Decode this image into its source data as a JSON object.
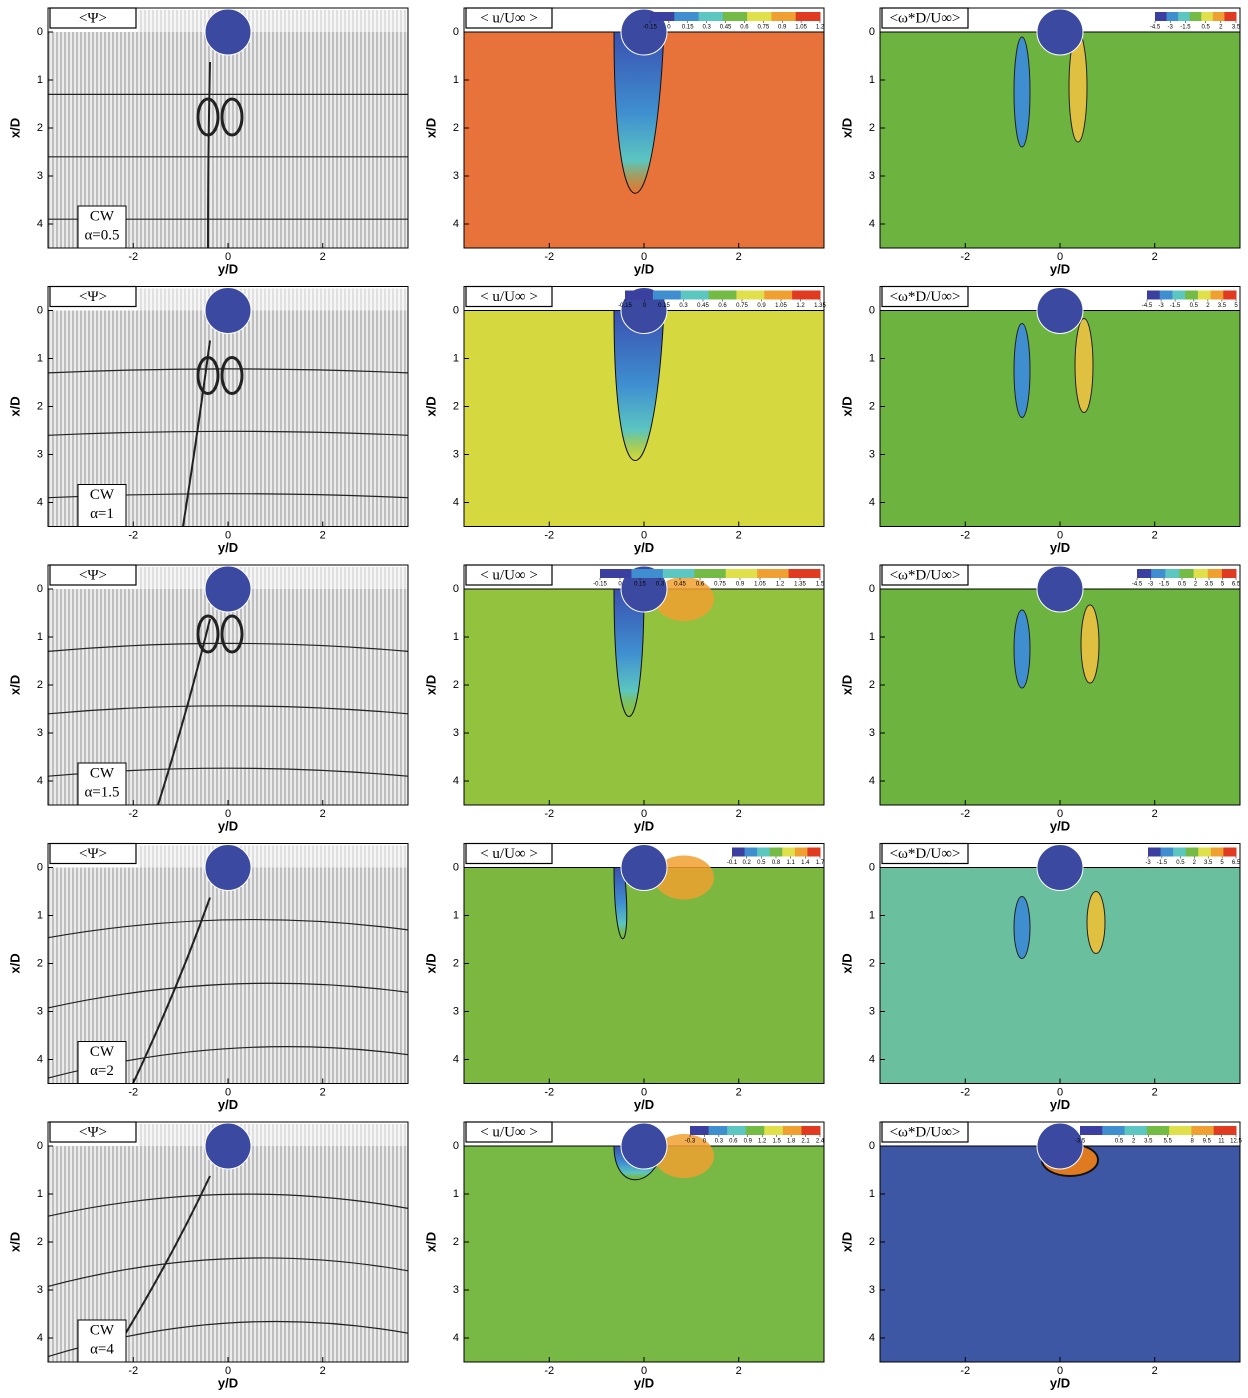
{
  "chart_data": [
    {
      "type": "vector",
      "label": "<Ψ>",
      "xlabel": "y/D",
      "ylabel": "x/D",
      "xlim": [
        -3.8,
        3.8
      ],
      "ylim": [
        4.5,
        -0.5
      ],
      "xticks": [
        -2,
        0,
        2
      ],
      "yticks": [
        0,
        1,
        2,
        3,
        4
      ],
      "annotation": [
        "CW",
        "α=0.5"
      ]
    },
    {
      "type": "contour",
      "label": "< u/U∞ >",
      "xlabel": "y/D",
      "ylabel": "x/D",
      "xlim": [
        -3.8,
        3.8
      ],
      "ylim": [
        4.5,
        -0.5
      ],
      "xticks": [
        -2,
        0,
        2
      ],
      "yticks": [
        0,
        1,
        2,
        3,
        4
      ],
      "background": "#e8733a",
      "colorbar": {
        "clim": [
          -0.15,
          1.2
        ],
        "ticks": [
          -0.15,
          0,
          0.15,
          0.3,
          0.45,
          0.6,
          0.75,
          0.9,
          1.05,
          1.2
        ],
        "colors": [
          "#3a3fa0",
          "#3f8fd0",
          "#5cc6c0",
          "#74bb45",
          "#e0e04a",
          "#f0a030",
          "#e03a20"
        ]
      }
    },
    {
      "type": "contour",
      "label": "<ω*D/U∞>",
      "xlabel": "y/D",
      "ylabel": "x/D",
      "xlim": [
        -3.8,
        3.8
      ],
      "ylim": [
        4.5,
        -0.5
      ],
      "xticks": [
        -2,
        0,
        2
      ],
      "yticks": [
        0,
        1,
        2,
        3,
        4
      ],
      "background": "#6db33f",
      "colorbar": {
        "clim": [
          -4.5,
          3.5
        ],
        "ticks": [
          -4.5,
          -3,
          -1.5,
          0.5,
          2,
          3.5
        ],
        "colors": [
          "#3a3fa0",
          "#3f8fd0",
          "#5cc6c0",
          "#74bb45",
          "#e0e04a",
          "#f0a030",
          "#e03a20"
        ]
      }
    },
    {
      "type": "vector",
      "label": "<Ψ>",
      "xlabel": "y/D",
      "ylabel": "x/D",
      "xlim": [
        -3.8,
        3.8
      ],
      "ylim": [
        4.5,
        -0.5
      ],
      "xticks": [
        -2,
        0,
        2
      ],
      "yticks": [
        0,
        1,
        2,
        3,
        4
      ],
      "annotation": [
        "CW",
        "α=1"
      ]
    },
    {
      "type": "contour",
      "label": "< u/U∞ >",
      "xlabel": "y/D",
      "ylabel": "x/D",
      "xlim": [
        -3.8,
        3.8
      ],
      "ylim": [
        4.5,
        -0.5
      ],
      "xticks": [
        -2,
        0,
        2
      ],
      "yticks": [
        0,
        1,
        2,
        3,
        4
      ],
      "background": "#d6d840",
      "colorbar": {
        "clim": [
          -0.15,
          1.35
        ],
        "ticks": [
          -0.15,
          0,
          0.15,
          0.3,
          0.45,
          0.6,
          0.75,
          0.9,
          1.05,
          1.2,
          1.35
        ],
        "colors": [
          "#3a3fa0",
          "#3f8fd0",
          "#5cc6c0",
          "#74bb45",
          "#e0e04a",
          "#f0a030",
          "#e03a20"
        ]
      }
    },
    {
      "type": "contour",
      "label": "<ω*D/U∞>",
      "xlabel": "y/D",
      "ylabel": "x/D",
      "xlim": [
        -3.8,
        3.8
      ],
      "ylim": [
        4.5,
        -0.5
      ],
      "xticks": [
        -2,
        0,
        2
      ],
      "yticks": [
        0,
        1,
        2,
        3,
        4
      ],
      "background": "#6db33f",
      "colorbar": {
        "clim": [
          -4.5,
          5
        ],
        "ticks": [
          -4.5,
          -3,
          -1.5,
          0.5,
          2,
          3.5,
          5
        ],
        "colors": [
          "#3a3fa0",
          "#3f8fd0",
          "#5cc6c0",
          "#74bb45",
          "#e0e04a",
          "#f0a030",
          "#e03a20"
        ]
      }
    },
    {
      "type": "vector",
      "label": "<Ψ>",
      "xlabel": "y/D",
      "ylabel": "x/D",
      "xlim": [
        -3.8,
        3.8
      ],
      "ylim": [
        4.5,
        -0.5
      ],
      "xticks": [
        -2,
        0,
        2
      ],
      "yticks": [
        0,
        1,
        2,
        3,
        4
      ],
      "annotation": [
        "CW",
        "α=1.5"
      ]
    },
    {
      "type": "contour",
      "label": "< u/U∞ >",
      "xlabel": "y/D",
      "ylabel": "x/D",
      "xlim": [
        -3.8,
        3.8
      ],
      "ylim": [
        4.5,
        -0.5
      ],
      "xticks": [
        -2,
        0,
        2
      ],
      "yticks": [
        0,
        1,
        2,
        3,
        4
      ],
      "background": "#93c23f",
      "colorbar": {
        "clim": [
          -0.15,
          1.5
        ],
        "ticks": [
          -0.15,
          0,
          0.15,
          0.3,
          0.45,
          0.6,
          0.75,
          0.9,
          1.05,
          1.2,
          1.35,
          1.5
        ],
        "colors": [
          "#3a3fa0",
          "#3f8fd0",
          "#5cc6c0",
          "#74bb45",
          "#e0e04a",
          "#f0a030",
          "#e03a20"
        ]
      }
    },
    {
      "type": "contour",
      "label": "<ω*D/U∞>",
      "xlabel": "y/D",
      "ylabel": "x/D",
      "xlim": [
        -3.8,
        3.8
      ],
      "ylim": [
        4.5,
        -0.5
      ],
      "xticks": [
        -2,
        0,
        2
      ],
      "yticks": [
        0,
        1,
        2,
        3,
        4
      ],
      "background": "#6db33f",
      "colorbar": {
        "clim": [
          -4.5,
          6.5
        ],
        "ticks": [
          -4.5,
          -3,
          -1.5,
          0.5,
          2,
          3.5,
          5,
          6.5
        ],
        "colors": [
          "#3a3fa0",
          "#3f8fd0",
          "#5cc6c0",
          "#74bb45",
          "#e0e04a",
          "#f0a030",
          "#e03a20"
        ]
      }
    },
    {
      "type": "vector",
      "label": "<Ψ>",
      "xlabel": "y/D",
      "ylabel": "x/D",
      "xlim": [
        -3.8,
        3.8
      ],
      "ylim": [
        4.5,
        -0.5
      ],
      "xticks": [
        -2,
        0,
        2
      ],
      "yticks": [
        0,
        1,
        2,
        3,
        4
      ],
      "annotation": [
        "CW",
        "α=2"
      ]
    },
    {
      "type": "contour",
      "label": "< u/U∞ >",
      "xlabel": "y/D",
      "ylabel": "x/D",
      "xlim": [
        -3.8,
        3.8
      ],
      "ylim": [
        4.5,
        -0.5
      ],
      "xticks": [
        -2,
        0,
        2
      ],
      "yticks": [
        0,
        1,
        2,
        3,
        4
      ],
      "background": "#7cb840",
      "colorbar": {
        "clim": [
          -0.1,
          1.7
        ],
        "ticks": [
          -0.1,
          0.2,
          0.5,
          0.8,
          1.1,
          1.4,
          1.7
        ],
        "colors": [
          "#3a3fa0",
          "#3f8fd0",
          "#5cc6c0",
          "#74bb45",
          "#e0e04a",
          "#f0a030",
          "#e03a20"
        ]
      }
    },
    {
      "type": "contour",
      "label": "<ω*D/U∞>",
      "xlabel": "y/D",
      "ylabel": "x/D",
      "xlim": [
        -3.8,
        3.8
      ],
      "ylim": [
        4.5,
        -0.5
      ],
      "xticks": [
        -2,
        0,
        2
      ],
      "yticks": [
        0,
        1,
        2,
        3,
        4
      ],
      "background": "#6abf9f",
      "colorbar": {
        "clim": [
          -3,
          6.5
        ],
        "ticks": [
          -3,
          -1.5,
          0.5,
          2,
          3.5,
          5,
          6.5
        ],
        "colors": [
          "#3a3fa0",
          "#3f8fd0",
          "#5cc6c0",
          "#74bb45",
          "#e0e04a",
          "#f0a030",
          "#e03a20"
        ]
      }
    },
    {
      "type": "vector",
      "label": "<Ψ>",
      "xlabel": "y/D",
      "ylabel": "x/D",
      "xlim": [
        -3.8,
        3.8
      ],
      "ylim": [
        4.5,
        -0.5
      ],
      "xticks": [
        -2,
        0,
        2
      ],
      "yticks": [
        0,
        1,
        2,
        3,
        4
      ],
      "annotation": [
        "CW",
        "α=4"
      ]
    },
    {
      "type": "contour",
      "label": "< u/U∞ >",
      "xlabel": "y/D",
      "ylabel": "x/D",
      "xlim": [
        -3.8,
        3.8
      ],
      "ylim": [
        4.5,
        -0.5
      ],
      "xticks": [
        -2,
        0,
        2
      ],
      "yticks": [
        0,
        1,
        2,
        3,
        4
      ],
      "background": "#78b845",
      "colorbar": {
        "clim": [
          -0.3,
          2.4
        ],
        "ticks": [
          -0.3,
          0,
          0.3,
          0.6,
          0.9,
          1.2,
          1.5,
          1.8,
          2.1,
          2.4
        ],
        "colors": [
          "#3a3fa0",
          "#3f8fd0",
          "#5cc6c0",
          "#74bb45",
          "#e0e04a",
          "#f0a030",
          "#e03a20"
        ]
      }
    },
    {
      "type": "contour",
      "label": "<ω*D/U∞>",
      "xlabel": "y/D",
      "ylabel": "x/D",
      "xlim": [
        -3.8,
        3.8
      ],
      "ylim": [
        4.5,
        -0.5
      ],
      "xticks": [
        -2,
        0,
        2
      ],
      "yticks": [
        0,
        1,
        2,
        3,
        4
      ],
      "background": "#3e57a4",
      "colorbar": {
        "clim": [
          -3.5,
          12.5
        ],
        "ticks": [
          -3.5,
          0.5,
          2,
          3.5,
          5.5,
          8,
          9.5,
          11,
          12.5
        ],
        "colors": [
          "#3a3fa0",
          "#3f8fd0",
          "#5cc6c0",
          "#74bb45",
          "#e0e04a",
          "#f0a030",
          "#e03a20"
        ]
      }
    }
  ]
}
